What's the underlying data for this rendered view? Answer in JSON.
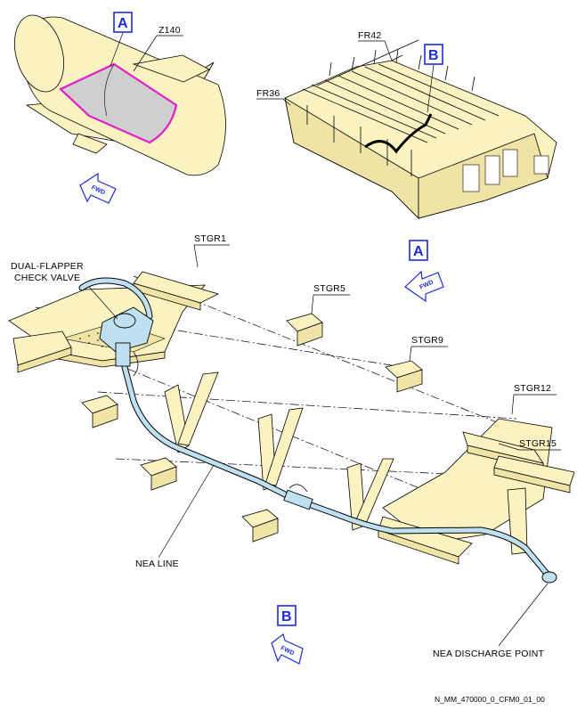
{
  "labels": {
    "z140": "Z140",
    "fr42": "FR42",
    "fr36": "FR36",
    "stgr1": "STGR1",
    "stgr5": "STGR5",
    "stgr9": "STGR9",
    "stgr12": "STGR12",
    "stgr15": "STGR15",
    "check_valve_line1": "DUAL-FLAPPER",
    "check_valve_line2": "CHECK VALVE",
    "nea_line": "NEA LINE",
    "nea_discharge": "NEA DISCHARGE POINT"
  },
  "refs": {
    "a_top": "A",
    "b_top": "B",
    "a_mid": "A",
    "b_bottom": "B"
  },
  "fwd_arrows": {
    "top": "FWD",
    "mid": "FWD",
    "bottom": "FWD"
  },
  "footer": "N_MM_470000_0_CFM0_01_00",
  "colors": {
    "structure": "#fbf2c2",
    "pipe": "#bfe0f0",
    "highlight": "#e01fc4",
    "zone_fill": "#cfcfcf",
    "reference_blue": "#1c2bd6"
  }
}
